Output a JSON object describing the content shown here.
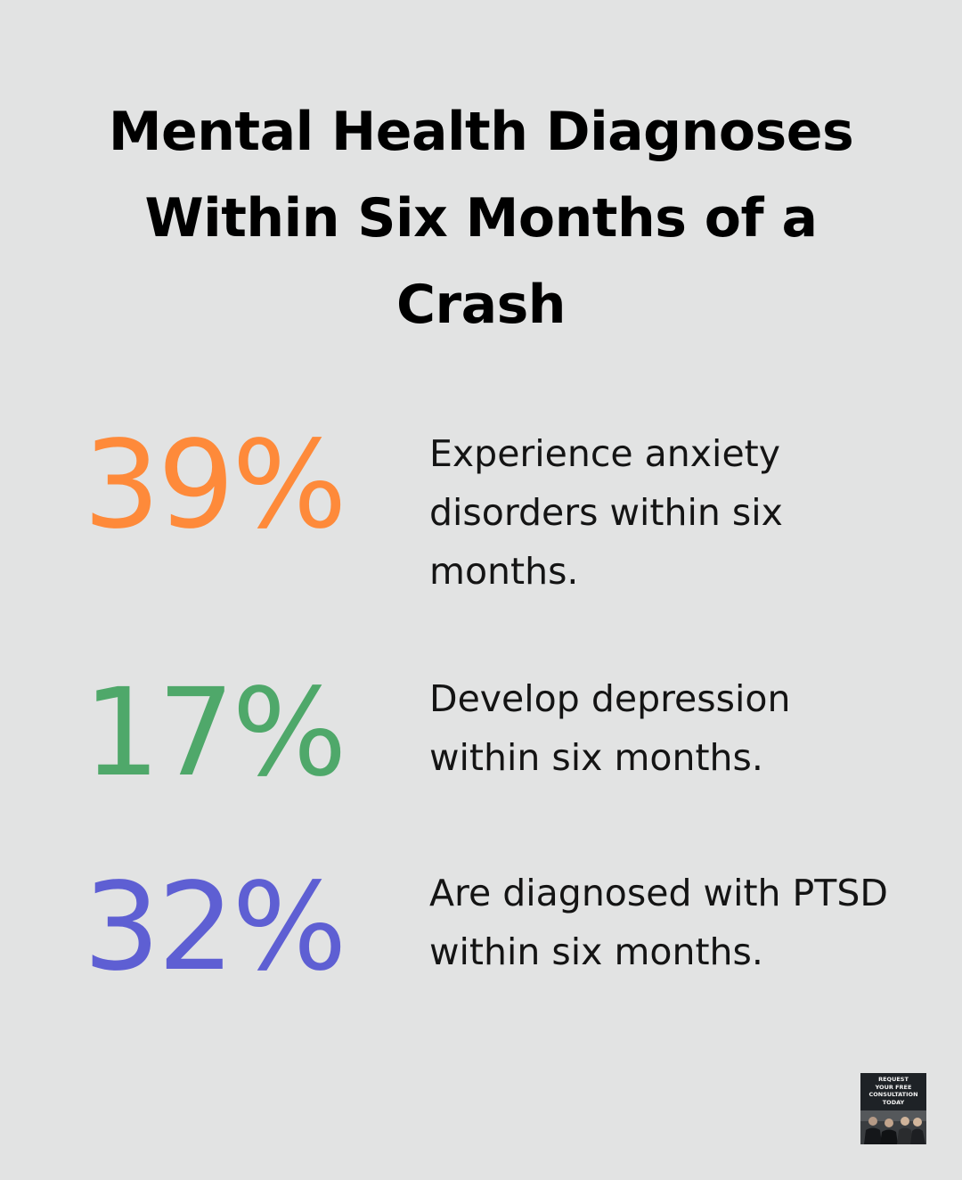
{
  "title": "Mental Health Diagnoses Within Six Months of a Crash",
  "stats": [
    {
      "value_label": "39%",
      "description": "Experience anxiety disorders within six months.",
      "color": "#fe8a3a"
    },
    {
      "value_label": "17%",
      "description": "Develop depression within six months.",
      "color": "#4fa86a"
    },
    {
      "value_label": "32%",
      "description": "Are diagnosed with PTSD within six months.",
      "color": "#5e5fd3"
    }
  ],
  "cta": {
    "text": "REQUEST\nYOUR FREE\nCONSULTATION\nTODAY"
  },
  "chart_data": {
    "type": "table",
    "title": "Mental Health Diagnoses Within Six Months of a Crash",
    "rows": [
      {
        "value": 39,
        "unit": "%",
        "label": "Experience anxiety disorders within six months."
      },
      {
        "value": 17,
        "unit": "%",
        "label": "Develop depression within six months."
      },
      {
        "value": 32,
        "unit": "%",
        "label": "Are diagnosed with PTSD within six months."
      }
    ]
  }
}
